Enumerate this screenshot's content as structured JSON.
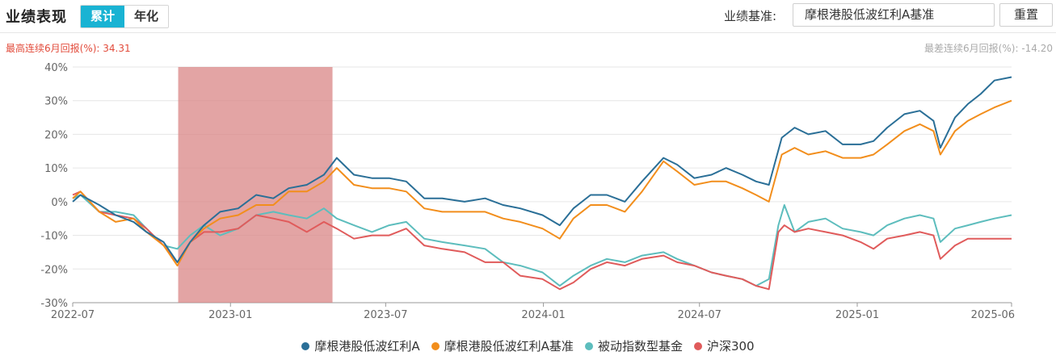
{
  "header": {
    "title": "业绩表现",
    "tabs": [
      {
        "label": "累计",
        "active": true
      },
      {
        "label": "年化",
        "active": false
      }
    ],
    "benchmark_label": "业绩基准:",
    "benchmark_value": "摩根港股低波红利A基准",
    "reset_label": "重置"
  },
  "stats": {
    "best_label": "最高连续6月回报(%): ",
    "best_value": "34.31",
    "worst_label": "最差连续6月回报(%): ",
    "worst_value": "-14.20"
  },
  "colors": {
    "fund": "#2a6f97",
    "benchmark": "#f28e1c",
    "passive": "#5dbdbd",
    "hs300": "#e05b5b",
    "highlight": "#d98585",
    "grid": "#e6e6e6"
  },
  "chart_data": {
    "type": "line",
    "title": "",
    "xlabel": "",
    "ylabel": "",
    "x_ticks": [
      "2022-07",
      "2023-01",
      "2023-07",
      "2024-01",
      "2024-07",
      "2025-01",
      "2025-06"
    ],
    "y_ticks": [
      "40%",
      "30%",
      "20%",
      "10%",
      "0%",
      "-10%",
      "-20%",
      "-30%"
    ],
    "ylim": [
      -30,
      40
    ],
    "grid": true,
    "legend_position": "bottom",
    "highlight_period": {
      "start": "2022-11-01",
      "end": "2023-04-30",
      "meaning": "最高连续6月回报"
    },
    "series": [
      {
        "name": "摩根港股低波红利A",
        "points": [
          [
            "2022-07-01",
            0
          ],
          [
            "2022-07-10",
            2
          ],
          [
            "2022-08-01",
            -1
          ],
          [
            "2022-08-20",
            -4
          ],
          [
            "2022-09-10",
            -6
          ],
          [
            "2022-09-25",
            -9
          ],
          [
            "2022-10-15",
            -12
          ],
          [
            "2022-10-31",
            -18
          ],
          [
            "2022-11-15",
            -12
          ],
          [
            "2022-12-01",
            -7
          ],
          [
            "2022-12-20",
            -3
          ],
          [
            "2023-01-10",
            -2
          ],
          [
            "2023-01-31",
            2
          ],
          [
            "2023-02-20",
            1
          ],
          [
            "2023-03-10",
            4
          ],
          [
            "2023-03-31",
            5
          ],
          [
            "2023-04-20",
            8
          ],
          [
            "2023-05-05",
            13
          ],
          [
            "2023-05-25",
            8
          ],
          [
            "2023-06-15",
            7
          ],
          [
            "2023-07-05",
            7
          ],
          [
            "2023-07-25",
            6
          ],
          [
            "2023-08-15",
            1
          ],
          [
            "2023-09-05",
            1
          ],
          [
            "2023-10-01",
            0
          ],
          [
            "2023-10-25",
            1
          ],
          [
            "2023-11-15",
            -1
          ],
          [
            "2023-12-05",
            -2
          ],
          [
            "2023-12-31",
            -4
          ],
          [
            "2024-01-20",
            -7
          ],
          [
            "2024-02-05",
            -2
          ],
          [
            "2024-02-25",
            2
          ],
          [
            "2024-03-15",
            2
          ],
          [
            "2024-04-05",
            0
          ],
          [
            "2024-04-25",
            6
          ],
          [
            "2024-05-20",
            13
          ],
          [
            "2024-06-05",
            11
          ],
          [
            "2024-06-25",
            7
          ],
          [
            "2024-07-15",
            8
          ],
          [
            "2024-08-01",
            10
          ],
          [
            "2024-08-20",
            8
          ],
          [
            "2024-09-05",
            6
          ],
          [
            "2024-09-20",
            5
          ],
          [
            "2024-10-05",
            19
          ],
          [
            "2024-10-20",
            22
          ],
          [
            "2024-11-05",
            20
          ],
          [
            "2024-11-25",
            21
          ],
          [
            "2024-12-15",
            17
          ],
          [
            "2025-01-05",
            17
          ],
          [
            "2025-01-20",
            18
          ],
          [
            "2025-02-05",
            22
          ],
          [
            "2025-02-25",
            26
          ],
          [
            "2025-03-15",
            27
          ],
          [
            "2025-03-31",
            24
          ],
          [
            "2025-04-08",
            16
          ],
          [
            "2025-04-25",
            25
          ],
          [
            "2025-05-10",
            29
          ],
          [
            "2025-05-25",
            32
          ],
          [
            "2025-06-10",
            36
          ],
          [
            "2025-06-30",
            37
          ]
        ]
      },
      {
        "name": "摩根港股低波红利A基准",
        "points": [
          [
            "2022-07-01",
            1
          ],
          [
            "2022-07-10",
            3
          ],
          [
            "2022-08-01",
            -3
          ],
          [
            "2022-08-20",
            -6
          ],
          [
            "2022-09-10",
            -5
          ],
          [
            "2022-09-25",
            -9
          ],
          [
            "2022-10-15",
            -13
          ],
          [
            "2022-10-31",
            -19
          ],
          [
            "2022-11-15",
            -12
          ],
          [
            "2022-12-01",
            -8
          ],
          [
            "2022-12-20",
            -5
          ],
          [
            "2023-01-10",
            -4
          ],
          [
            "2023-01-31",
            -1
          ],
          [
            "2023-02-20",
            -1
          ],
          [
            "2023-03-10",
            3
          ],
          [
            "2023-03-31",
            3
          ],
          [
            "2023-04-20",
            6
          ],
          [
            "2023-05-05",
            10
          ],
          [
            "2023-05-25",
            5
          ],
          [
            "2023-06-15",
            4
          ],
          [
            "2023-07-05",
            4
          ],
          [
            "2023-07-25",
            3
          ],
          [
            "2023-08-15",
            -2
          ],
          [
            "2023-09-05",
            -3
          ],
          [
            "2023-10-01",
            -3
          ],
          [
            "2023-10-25",
            -3
          ],
          [
            "2023-11-15",
            -5
          ],
          [
            "2023-12-05",
            -6
          ],
          [
            "2023-12-31",
            -8
          ],
          [
            "2024-01-20",
            -11
          ],
          [
            "2024-02-05",
            -5
          ],
          [
            "2024-02-25",
            -1
          ],
          [
            "2024-03-15",
            -1
          ],
          [
            "2024-04-05",
            -3
          ],
          [
            "2024-04-25",
            3
          ],
          [
            "2024-05-20",
            12
          ],
          [
            "2024-06-05",
            9
          ],
          [
            "2024-06-25",
            5
          ],
          [
            "2024-07-15",
            6
          ],
          [
            "2024-08-01",
            6
          ],
          [
            "2024-08-20",
            4
          ],
          [
            "2024-09-05",
            2
          ],
          [
            "2024-09-20",
            0
          ],
          [
            "2024-10-05",
            14
          ],
          [
            "2024-10-20",
            16
          ],
          [
            "2024-11-05",
            14
          ],
          [
            "2024-11-25",
            15
          ],
          [
            "2024-12-15",
            13
          ],
          [
            "2025-01-05",
            13
          ],
          [
            "2025-01-20",
            14
          ],
          [
            "2025-02-05",
            17
          ],
          [
            "2025-02-25",
            21
          ],
          [
            "2025-03-15",
            23
          ],
          [
            "2025-03-31",
            21
          ],
          [
            "2025-04-08",
            14
          ],
          [
            "2025-04-25",
            21
          ],
          [
            "2025-05-10",
            24
          ],
          [
            "2025-05-25",
            26
          ],
          [
            "2025-06-10",
            28
          ],
          [
            "2025-06-30",
            30
          ]
        ]
      },
      {
        "name": "被动指数型基金",
        "points": [
          [
            "2022-07-01",
            1
          ],
          [
            "2022-07-10",
            2
          ],
          [
            "2022-08-01",
            -3
          ],
          [
            "2022-08-20",
            -3
          ],
          [
            "2022-09-10",
            -4
          ],
          [
            "2022-09-25",
            -8
          ],
          [
            "2022-10-15",
            -13
          ],
          [
            "2022-10-31",
            -14
          ],
          [
            "2022-11-15",
            -10
          ],
          [
            "2022-12-01",
            -7
          ],
          [
            "2022-12-20",
            -10
          ],
          [
            "2023-01-10",
            -8
          ],
          [
            "2023-01-31",
            -4
          ],
          [
            "2023-02-20",
            -3
          ],
          [
            "2023-03-10",
            -4
          ],
          [
            "2023-03-31",
            -5
          ],
          [
            "2023-04-20",
            -2
          ],
          [
            "2023-05-05",
            -5
          ],
          [
            "2023-05-25",
            -7
          ],
          [
            "2023-06-15",
            -9
          ],
          [
            "2023-07-05",
            -7
          ],
          [
            "2023-07-25",
            -6
          ],
          [
            "2023-08-15",
            -11
          ],
          [
            "2023-09-05",
            -12
          ],
          [
            "2023-10-01",
            -13
          ],
          [
            "2023-10-25",
            -14
          ],
          [
            "2023-11-15",
            -18
          ],
          [
            "2023-12-05",
            -19
          ],
          [
            "2023-12-31",
            -21
          ],
          [
            "2024-01-20",
            -25
          ],
          [
            "2024-02-05",
            -22
          ],
          [
            "2024-02-25",
            -19
          ],
          [
            "2024-03-15",
            -17
          ],
          [
            "2024-04-05",
            -18
          ],
          [
            "2024-04-25",
            -16
          ],
          [
            "2024-05-20",
            -15
          ],
          [
            "2024-06-05",
            -17
          ],
          [
            "2024-06-25",
            -19
          ],
          [
            "2024-07-15",
            -21
          ],
          [
            "2024-08-01",
            -22
          ],
          [
            "2024-08-20",
            -23
          ],
          [
            "2024-09-05",
            -25
          ],
          [
            "2024-09-20",
            -23
          ],
          [
            "2024-10-01",
            -7
          ],
          [
            "2024-10-08",
            -1
          ],
          [
            "2024-10-20",
            -9
          ],
          [
            "2024-11-05",
            -6
          ],
          [
            "2024-11-25",
            -5
          ],
          [
            "2024-12-15",
            -8
          ],
          [
            "2025-01-05",
            -9
          ],
          [
            "2025-01-20",
            -10
          ],
          [
            "2025-02-05",
            -7
          ],
          [
            "2025-02-25",
            -5
          ],
          [
            "2025-03-15",
            -4
          ],
          [
            "2025-03-31",
            -5
          ],
          [
            "2025-04-08",
            -12
          ],
          [
            "2025-04-25",
            -8
          ],
          [
            "2025-05-10",
            -7
          ],
          [
            "2025-05-25",
            -6
          ],
          [
            "2025-06-10",
            -5
          ],
          [
            "2025-06-30",
            -4
          ]
        ]
      },
      {
        "name": "沪深300",
        "points": [
          [
            "2022-07-01",
            2
          ],
          [
            "2022-07-10",
            3
          ],
          [
            "2022-08-01",
            -3
          ],
          [
            "2022-08-20",
            -4
          ],
          [
            "2022-09-10",
            -5
          ],
          [
            "2022-09-25",
            -8
          ],
          [
            "2022-10-15",
            -13
          ],
          [
            "2022-10-31",
            -18
          ],
          [
            "2022-11-15",
            -12
          ],
          [
            "2022-12-01",
            -9
          ],
          [
            "2022-12-20",
            -9
          ],
          [
            "2023-01-10",
            -8
          ],
          [
            "2023-01-31",
            -4
          ],
          [
            "2023-02-20",
            -5
          ],
          [
            "2023-03-10",
            -6
          ],
          [
            "2023-03-31",
            -9
          ],
          [
            "2023-04-20",
            -6
          ],
          [
            "2023-05-05",
            -8
          ],
          [
            "2023-05-25",
            -11
          ],
          [
            "2023-06-15",
            -10
          ],
          [
            "2023-07-05",
            -10
          ],
          [
            "2023-07-25",
            -8
          ],
          [
            "2023-08-15",
            -13
          ],
          [
            "2023-09-05",
            -14
          ],
          [
            "2023-10-01",
            -15
          ],
          [
            "2023-10-25",
            -18
          ],
          [
            "2023-11-15",
            -18
          ],
          [
            "2023-12-05",
            -22
          ],
          [
            "2023-12-31",
            -23
          ],
          [
            "2024-01-20",
            -26
          ],
          [
            "2024-02-05",
            -24
          ],
          [
            "2024-02-25",
            -20
          ],
          [
            "2024-03-15",
            -18
          ],
          [
            "2024-04-05",
            -19
          ],
          [
            "2024-04-25",
            -17
          ],
          [
            "2024-05-20",
            -16
          ],
          [
            "2024-06-05",
            -18
          ],
          [
            "2024-06-25",
            -19
          ],
          [
            "2024-07-15",
            -21
          ],
          [
            "2024-08-01",
            -22
          ],
          [
            "2024-08-20",
            -23
          ],
          [
            "2024-09-05",
            -25
          ],
          [
            "2024-09-20",
            -26
          ],
          [
            "2024-10-01",
            -9
          ],
          [
            "2024-10-08",
            -7
          ],
          [
            "2024-10-20",
            -9
          ],
          [
            "2024-11-05",
            -8
          ],
          [
            "2024-11-25",
            -9
          ],
          [
            "2024-12-15",
            -10
          ],
          [
            "2025-01-05",
            -12
          ],
          [
            "2025-01-20",
            -14
          ],
          [
            "2025-02-05",
            -11
          ],
          [
            "2025-02-25",
            -10
          ],
          [
            "2025-03-15",
            -9
          ],
          [
            "2025-03-31",
            -10
          ],
          [
            "2025-04-08",
            -17
          ],
          [
            "2025-04-25",
            -13
          ],
          [
            "2025-05-10",
            -11
          ],
          [
            "2025-05-25",
            -11
          ],
          [
            "2025-06-10",
            -11
          ],
          [
            "2025-06-30",
            -11
          ]
        ]
      }
    ]
  }
}
